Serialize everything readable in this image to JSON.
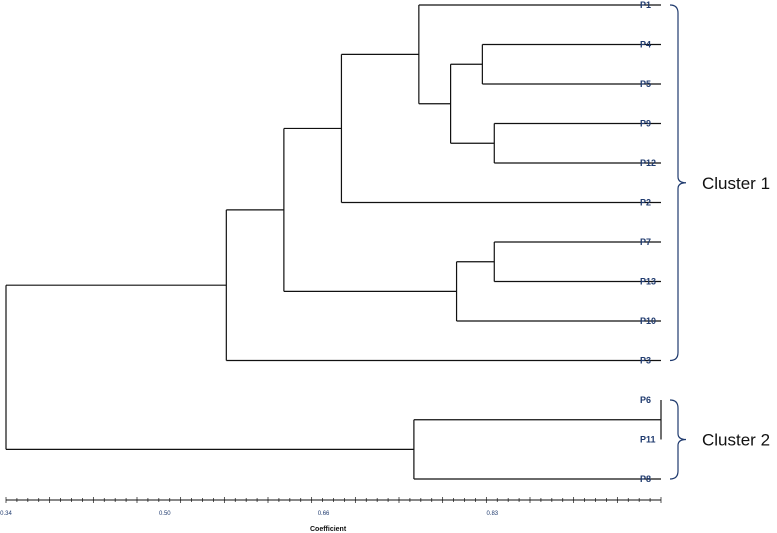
{
  "chart_data": {
    "type": "dendrogram",
    "xlabel": "Coefficient",
    "xlim": [
      0.34,
      1.0
    ],
    "ticks": [
      "0.34",
      "0.50",
      "0.66",
      "0.83"
    ],
    "leaves": [
      "P1",
      "P4",
      "P5",
      "P9",
      "P12",
      "P2",
      "P7",
      "P13",
      "P10",
      "P3",
      "P6",
      "P11",
      "P8"
    ],
    "merges": [
      {
        "id": "m1",
        "children": [
          "P6",
          "P11"
        ],
        "height": 1.0
      },
      {
        "id": "m2",
        "children": [
          "P4",
          "P5"
        ],
        "height": 0.82
      },
      {
        "id": "m3",
        "children": [
          "P9",
          "P12"
        ],
        "height": 0.832
      },
      {
        "id": "m4",
        "children": [
          "P7",
          "P13"
        ],
        "height": 0.832
      },
      {
        "id": "m5",
        "children": [
          "m2",
          "m3"
        ],
        "height": 0.788
      },
      {
        "id": "m6",
        "children": [
          "m4",
          "P10"
        ],
        "height": 0.794
      },
      {
        "id": "m7",
        "children": [
          "P1",
          "m5"
        ],
        "height": 0.756
      },
      {
        "id": "m8",
        "children": [
          "m1",
          "P8"
        ],
        "height": 0.751
      },
      {
        "id": "m9",
        "children": [
          "m7",
          "P2"
        ],
        "height": 0.678
      },
      {
        "id": "m10",
        "children": [
          "m9",
          "m6"
        ],
        "height": 0.62
      },
      {
        "id": "m11",
        "children": [
          "m10",
          "P3"
        ],
        "height": 0.562
      },
      {
        "id": "m12",
        "children": [
          "m11",
          "m8"
        ],
        "height": 0.34
      }
    ],
    "clusters": [
      {
        "name": "Cluster 1",
        "from": "P1",
        "to": "P3"
      },
      {
        "name": "Cluster 2",
        "from": "P6",
        "to": "P8"
      }
    ]
  }
}
